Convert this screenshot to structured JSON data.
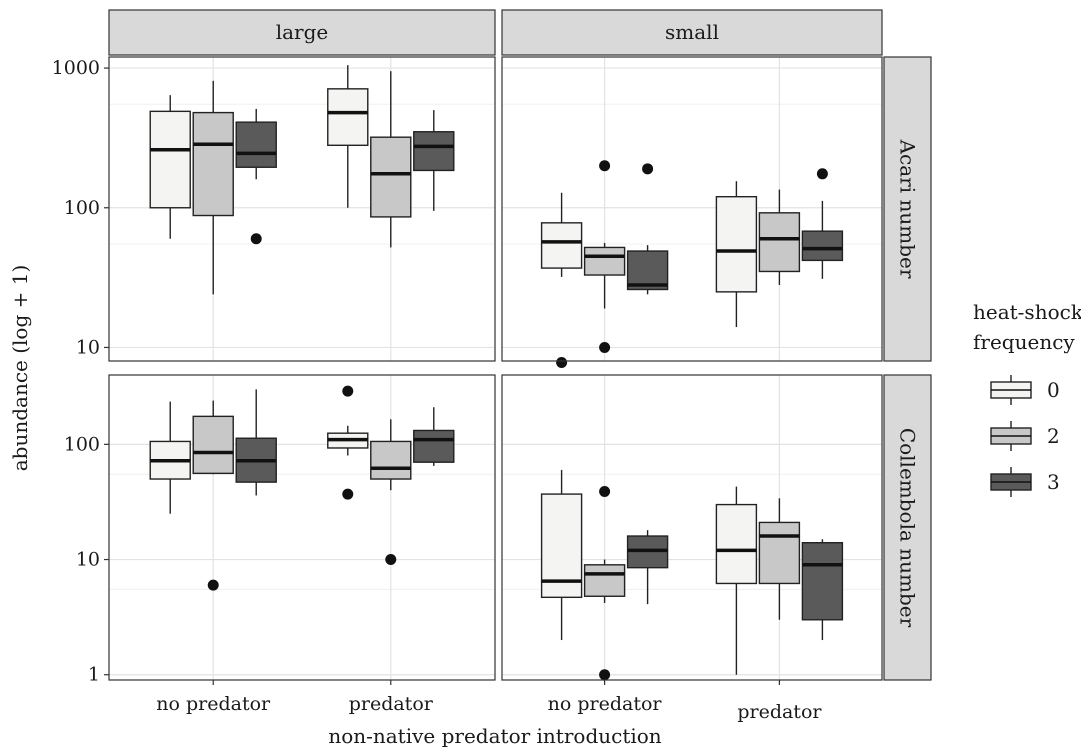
{
  "chart_data": {
    "type": "boxplot",
    "xlabel": "non-native predator introduction",
    "ylabel": "abundance (log + 1)",
    "categories": [
      "no predator",
      "predator"
    ],
    "facet_columns": [
      "large",
      "small"
    ],
    "facet_rows": [
      "Acari number",
      "Collembola number"
    ],
    "legend": {
      "title": [
        "heat-shock",
        "frequency"
      ],
      "entries": [
        {
          "label": "0",
          "color": "#f4f4f2"
        },
        {
          "label": "2",
          "color": "#c8c8c8"
        },
        {
          "label": "3",
          "color": "#5a5a5a"
        }
      ],
      "placement": "right"
    },
    "scale": "log",
    "grid": true,
    "rows": [
      {
        "ylim": [
          8,
          1200
        ],
        "ticks": [
          10,
          100,
          1000
        ],
        "tick_labels": [
          "10",
          "100",
          "1000"
        ]
      },
      {
        "ylim": [
          0.9,
          400
        ],
        "ticks": [
          1,
          10,
          100
        ],
        "tick_labels": [
          "1",
          "10",
          "100"
        ]
      }
    ],
    "panels": [
      {
        "column": "large",
        "row": "Acari number",
        "boxes": [
          {
            "category": "no predator",
            "frequency": "0",
            "lower": 60,
            "q1": 100,
            "median": 260,
            "q3": 490,
            "upper": 640,
            "outliers": []
          },
          {
            "category": "no predator",
            "frequency": "2",
            "lower": 24,
            "q1": 88,
            "median": 285,
            "q3": 480,
            "upper": 810,
            "outliers": []
          },
          {
            "category": "no predator",
            "frequency": "3",
            "lower": 160,
            "q1": 195,
            "median": 245,
            "q3": 410,
            "upper": 510,
            "outliers": [
              60
            ]
          },
          {
            "category": "predator",
            "frequency": "0",
            "lower": 100,
            "q1": 280,
            "median": 480,
            "q3": 710,
            "upper": 1050,
            "outliers": []
          },
          {
            "category": "predator",
            "frequency": "2",
            "lower": 52,
            "q1": 86,
            "median": 175,
            "q3": 320,
            "upper": 950,
            "outliers": []
          },
          {
            "category": "predator",
            "frequency": "3",
            "lower": 95,
            "q1": 185,
            "median": 275,
            "q3": 350,
            "upper": 500,
            "outliers": []
          }
        ]
      },
      {
        "column": "small",
        "row": "Acari number",
        "boxes": [
          {
            "category": "no predator",
            "frequency": "0",
            "lower": 32,
            "q1": 37,
            "median": 57,
            "q3": 78,
            "upper": 128,
            "outliers": [
              7.8
            ]
          },
          {
            "category": "no predator",
            "frequency": "2",
            "lower": 19,
            "q1": 33,
            "median": 45,
            "q3": 52,
            "upper": 56,
            "outliers": [
              200,
              10
            ]
          },
          {
            "category": "no predator",
            "frequency": "3",
            "lower": 24,
            "q1": 26,
            "median": 28,
            "q3": 49,
            "upper": 54,
            "outliers": [
              190
            ]
          },
          {
            "category": "predator",
            "frequency": "0",
            "lower": 14,
            "q1": 25,
            "median": 49,
            "q3": 120,
            "upper": 155,
            "outliers": []
          },
          {
            "category": "predator",
            "frequency": "2",
            "lower": 28,
            "q1": 35,
            "median": 60,
            "q3": 92,
            "upper": 135,
            "outliers": []
          },
          {
            "category": "predator",
            "frequency": "3",
            "lower": 31,
            "q1": 42,
            "median": 51,
            "q3": 68,
            "upper": 112,
            "outliers": [
              175
            ]
          }
        ]
      },
      {
        "column": "large",
        "row": "Collembola number",
        "boxes": [
          {
            "category": "no predator",
            "frequency": "0",
            "lower": 25,
            "q1": 50,
            "median": 72,
            "q3": 106,
            "upper": 235,
            "outliers": []
          },
          {
            "category": "no predator",
            "frequency": "2",
            "lower": 55,
            "q1": 56,
            "median": 85,
            "q3": 175,
            "upper": 240,
            "outliers": [
              6
            ]
          },
          {
            "category": "no predator",
            "frequency": "3",
            "lower": 36,
            "q1": 47,
            "median": 72,
            "q3": 113,
            "upper": 300,
            "outliers": []
          },
          {
            "category": "predator",
            "frequency": "0",
            "lower": 80,
            "q1": 93,
            "median": 110,
            "q3": 125,
            "upper": 145,
            "outliers": [
              290,
              37
            ]
          },
          {
            "category": "predator",
            "frequency": "2",
            "lower": 40,
            "q1": 50,
            "median": 62,
            "q3": 106,
            "upper": 165,
            "outliers": [
              10
            ]
          },
          {
            "category": "predator",
            "frequency": "3",
            "lower": 65,
            "q1": 70,
            "median": 110,
            "q3": 132,
            "upper": 210,
            "outliers": []
          }
        ]
      },
      {
        "column": "small",
        "row": "Collembola number",
        "boxes": [
          {
            "category": "no predator",
            "frequency": "0",
            "lower": 2,
            "q1": 4.7,
            "median": 6.5,
            "q3": 37,
            "upper": 60,
            "outliers": []
          },
          {
            "category": "no predator",
            "frequency": "2",
            "lower": 4.2,
            "q1": 4.8,
            "median": 7.5,
            "q3": 9,
            "upper": 10,
            "outliers": [
              39,
              1
            ]
          },
          {
            "category": "no predator",
            "frequency": "3",
            "lower": 4.1,
            "q1": 8.5,
            "median": 12,
            "q3": 16,
            "upper": 18,
            "outliers": []
          },
          {
            "category": "predator",
            "frequency": "0",
            "lower": 1,
            "q1": 6.2,
            "median": 12,
            "q3": 30,
            "upper": 43,
            "outliers": []
          },
          {
            "category": "predator",
            "frequency": "2",
            "lower": 3,
            "q1": 6.2,
            "median": 16,
            "q3": 21,
            "upper": 34,
            "outliers": []
          },
          {
            "category": "predator",
            "frequency": "3",
            "lower": 2,
            "q1": 3,
            "median": 9,
            "q3": 14,
            "upper": 15,
            "outliers": []
          }
        ]
      }
    ]
  }
}
